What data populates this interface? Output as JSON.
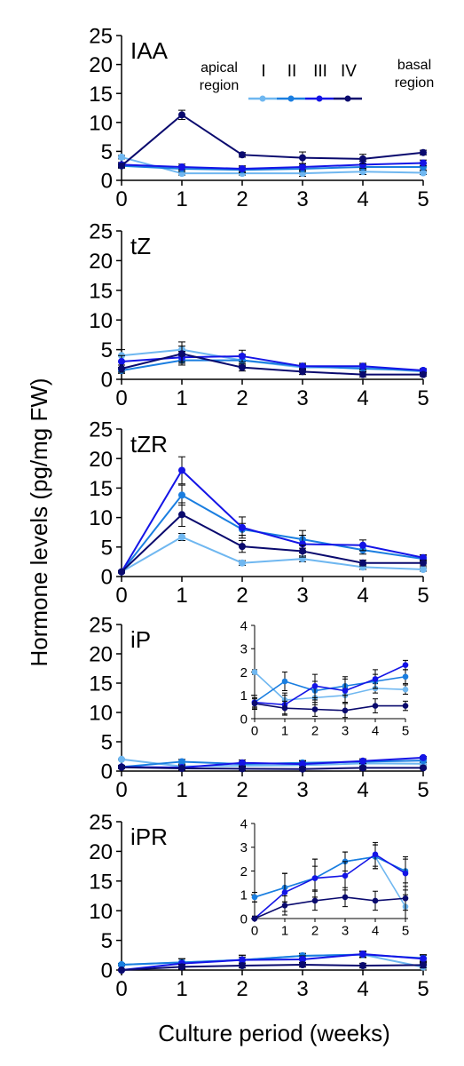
{
  "figure": {
    "ylabel": "Hormone levels (pg/mg FW)",
    "xlabel": "Culture period (weeks)"
  },
  "legend": {
    "left_line1": "apical",
    "left_line2": "region",
    "right_line1": "basal",
    "right_line2": "region",
    "entries": [
      {
        "label": "I",
        "color": "#6fb7f0"
      },
      {
        "label": "II",
        "color": "#1a7ee0"
      },
      {
        "label": "III",
        "color": "#1414e6"
      },
      {
        "label": "IV",
        "color": "#0a0a6e"
      }
    ]
  },
  "series_colors": [
    "#6fb7f0",
    "#1a7ee0",
    "#1414e6",
    "#0a0a6e"
  ],
  "chart_data": [
    {
      "type": "line",
      "title": "IAA",
      "x": [
        0,
        1,
        2,
        3,
        4,
        5
      ],
      "xticks": [
        "0",
        "1",
        "2",
        "3",
        "4",
        "5"
      ],
      "yticks": [
        "0",
        "5",
        "10",
        "15",
        "20",
        "25"
      ],
      "ylim": [
        0,
        25
      ],
      "series": [
        {
          "name": "I",
          "values": [
            4.0,
            1.2,
            1.2,
            1.2,
            1.5,
            1.3
          ],
          "errors": [
            0.3,
            0.3,
            0.3,
            0.5,
            0.5,
            0.3
          ]
        },
        {
          "name": "II",
          "values": [
            2.5,
            2.0,
            1.8,
            2.0,
            2.3,
            2.3
          ],
          "errors": [
            0.4,
            0.5,
            0.5,
            0.5,
            0.5,
            0.5
          ]
        },
        {
          "name": "III",
          "values": [
            2.7,
            2.3,
            2.0,
            2.3,
            2.7,
            3.0
          ],
          "errors": [
            0.4,
            0.5,
            0.5,
            0.5,
            0.6,
            0.5
          ]
        },
        {
          "name": "IV",
          "values": [
            2.5,
            11.3,
            4.4,
            3.9,
            3.7,
            4.8
          ],
          "errors": [
            0.3,
            0.8,
            0.4,
            1.0,
            0.8,
            0.4
          ]
        }
      ]
    },
    {
      "type": "line",
      "title": "tZ",
      "x": [
        0,
        1,
        2,
        3,
        4,
        5
      ],
      "xticks": [
        "0",
        "1",
        "2",
        "3",
        "4",
        "5"
      ],
      "yticks": [
        "0",
        "5",
        "10",
        "15",
        "20",
        "25"
      ],
      "ylim": [
        0,
        25
      ],
      "series": [
        {
          "name": "I",
          "values": [
            4.0,
            5.0,
            3.2,
            2.0,
            2.0,
            1.3
          ],
          "errors": [
            1.0,
            1.3,
            1.0,
            0.5,
            0.5,
            0.3
          ]
        },
        {
          "name": "II",
          "values": [
            1.5,
            3.2,
            3.2,
            2.2,
            1.8,
            1.5
          ],
          "errors": [
            0.5,
            0.8,
            0.8,
            0.5,
            0.5,
            0.3
          ]
        },
        {
          "name": "III",
          "values": [
            3.0,
            3.7,
            3.9,
            2.2,
            2.2,
            1.5
          ],
          "errors": [
            1.0,
            1.0,
            1.0,
            0.5,
            0.5,
            0.3
          ]
        },
        {
          "name": "IV",
          "values": [
            1.8,
            4.3,
            2.0,
            1.3,
            0.8,
            0.8
          ],
          "errors": [
            0.6,
            1.3,
            0.6,
            0.5,
            0.4,
            0.3
          ]
        }
      ]
    },
    {
      "type": "line",
      "title": "tZR",
      "x": [
        0,
        1,
        2,
        3,
        4,
        5
      ],
      "xticks": [
        "0",
        "1",
        "2",
        "3",
        "4",
        "5"
      ],
      "yticks": [
        "0",
        "5",
        "10",
        "15",
        "20",
        "25"
      ],
      "ylim": [
        0,
        25
      ],
      "series": [
        {
          "name": "I",
          "values": [
            0.8,
            6.7,
            2.3,
            3.0,
            1.6,
            1.2
          ],
          "errors": [
            0.2,
            0.6,
            0.4,
            0.5,
            0.4,
            0.3
          ]
        },
        {
          "name": "II",
          "values": [
            0.8,
            13.8,
            8.0,
            6.3,
            4.5,
            3.0
          ],
          "errors": [
            0.2,
            1.7,
            1.0,
            1.5,
            0.7,
            0.5
          ]
        },
        {
          "name": "III",
          "values": [
            0.8,
            18.0,
            8.3,
            5.5,
            5.3,
            3.2
          ],
          "errors": [
            0.2,
            2.3,
            1.8,
            1.5,
            0.9,
            0.5
          ]
        },
        {
          "name": "IV",
          "values": [
            0.8,
            10.5,
            5.1,
            4.3,
            2.3,
            2.3
          ],
          "errors": [
            0.2,
            2.0,
            1.0,
            1.0,
            0.5,
            0.5
          ]
        }
      ]
    },
    {
      "type": "line",
      "title": "iP",
      "x": [
        0,
        1,
        2,
        3,
        4,
        5
      ],
      "xticks": [
        "0",
        "1",
        "2",
        "3",
        "4",
        "5"
      ],
      "yticks": [
        "0",
        "5",
        "10",
        "15",
        "20",
        "25"
      ],
      "ylim": [
        0,
        25
      ],
      "series": [
        {
          "name": "I",
          "values": [
            2.0,
            0.8,
            0.9,
            1.0,
            1.3,
            1.25
          ],
          "errors": [
            0.1,
            0.3,
            0.3,
            0.3,
            0.2,
            0.2
          ]
        },
        {
          "name": "II",
          "values": [
            0.7,
            1.6,
            1.2,
            1.4,
            1.6,
            1.8
          ],
          "errors": [
            0.2,
            0.4,
            0.4,
            0.4,
            0.3,
            0.3
          ]
        },
        {
          "name": "III",
          "values": [
            0.7,
            0.6,
            1.4,
            1.2,
            1.7,
            2.3
          ],
          "errors": [
            0.3,
            0.4,
            0.5,
            0.5,
            0.4,
            0.2
          ]
        },
        {
          "name": "IV",
          "values": [
            0.65,
            0.45,
            0.4,
            0.35,
            0.55,
            0.55
          ],
          "errors": [
            0.2,
            0.3,
            0.3,
            0.3,
            0.3,
            0.2
          ]
        }
      ],
      "inset": {
        "ylim": [
          0,
          4
        ],
        "xticks": [
          "0",
          "1",
          "2",
          "3",
          "4",
          "5"
        ],
        "yticks": [
          "0",
          "1",
          "2",
          "3",
          "4"
        ]
      }
    },
    {
      "type": "line",
      "title": "iPR",
      "x": [
        0,
        1,
        2,
        3,
        4,
        5
      ],
      "xticks": [
        "0",
        "1",
        "2",
        "3",
        "4",
        "5"
      ],
      "yticks": [
        "0",
        "5",
        "10",
        "15",
        "20",
        "25"
      ],
      "ylim": [
        0,
        25
      ],
      "series": [
        {
          "name": "I",
          "values": [
            0.9,
            1.3,
            1.7,
            2.4,
            2.6,
            0.5
          ],
          "errors": [
            0.2,
            0.6,
            0.5,
            0.4,
            0.5,
            0.5
          ]
        },
        {
          "name": "II",
          "values": [
            0.9,
            1.3,
            1.7,
            2.4,
            2.6,
            2.0
          ],
          "errors": [
            0.2,
            0.6,
            0.8,
            0.4,
            0.5,
            0.5
          ]
        },
        {
          "name": "III",
          "values": [
            0.0,
            1.1,
            1.7,
            1.8,
            2.7,
            1.9
          ],
          "errors": [
            0.1,
            0.8,
            0.8,
            0.6,
            0.5,
            0.7
          ]
        },
        {
          "name": "IV",
          "values": [
            0.0,
            0.55,
            0.75,
            0.9,
            0.75,
            0.85
          ],
          "errors": [
            0.1,
            0.4,
            0.4,
            0.4,
            0.4,
            0.5
          ]
        }
      ],
      "inset": {
        "ylim": [
          0,
          4
        ],
        "xticks": [
          "0",
          "1",
          "2",
          "3",
          "4",
          "5"
        ],
        "yticks": [
          "0",
          "1",
          "2",
          "3",
          "4"
        ]
      }
    }
  ]
}
